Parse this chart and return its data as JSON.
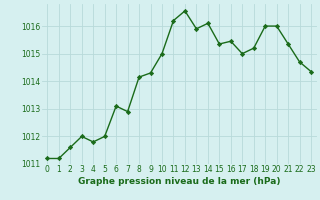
{
  "x": [
    0,
    1,
    2,
    3,
    4,
    5,
    6,
    7,
    8,
    9,
    10,
    11,
    12,
    13,
    14,
    15,
    16,
    17,
    18,
    19,
    20,
    21,
    22,
    23
  ],
  "y": [
    1011.2,
    1011.2,
    1011.6,
    1012.0,
    1011.8,
    1012.0,
    1013.1,
    1012.9,
    1014.15,
    1014.3,
    1015.0,
    1016.2,
    1016.55,
    1015.9,
    1016.1,
    1015.35,
    1015.45,
    1015.0,
    1015.2,
    1016.0,
    1016.0,
    1015.35,
    1014.7,
    1014.35
  ],
  "line_color": "#1a6b1a",
  "marker": "D",
  "markersize": 2.2,
  "linewidth": 1.0,
  "bg_color": "#d6f0f0",
  "grid_color": "#b8dada",
  "xlabel": "Graphe pression niveau de la mer (hPa)",
  "xlabel_fontsize": 6.5,
  "tick_fontsize": 5.5,
  "ylim": [
    1011,
    1016.8
  ],
  "yticks": [
    1011,
    1012,
    1013,
    1014,
    1015,
    1016
  ],
  "xticks": [
    0,
    1,
    2,
    3,
    4,
    5,
    6,
    7,
    8,
    9,
    10,
    11,
    12,
    13,
    14,
    15,
    16,
    17,
    18,
    19,
    20,
    21,
    22,
    23
  ],
  "title_color": "#1a6b1a"
}
